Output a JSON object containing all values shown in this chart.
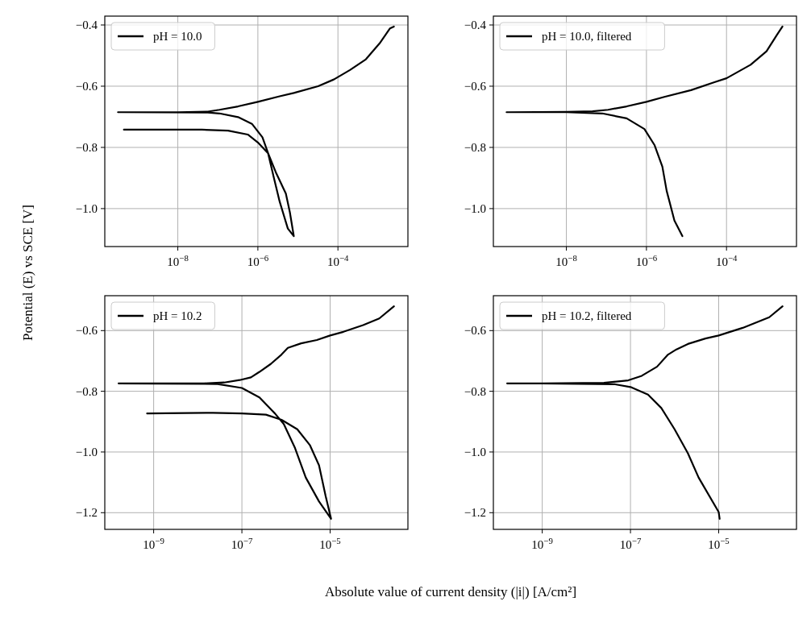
{
  "chart_data": [
    {
      "type": "line",
      "ylabel": "Potential (E) vs SCE [V]",
      "legend": "top left",
      "grid": true,
      "log": "x",
      "xlim": [
        1.5e-10,
        0.0056
      ],
      "ylim": [
        -1.124,
        -0.371
      ],
      "xticks": [
        {
          "value": 1e-08,
          "label": "10$^{−8}$"
        },
        {
          "value": 1e-06,
          "label": "10$^{−6}$"
        },
        {
          "value": 0.0001,
          "label": "10$^{−4}$"
        }
      ],
      "yticks": [
        {
          "value": -0.4,
          "label": "−0.4"
        },
        {
          "value": -0.6,
          "label": "−0.6"
        },
        {
          "value": -0.8,
          "label": "−0.8"
        },
        {
          "value": -1.0,
          "label": "−1.0"
        }
      ],
      "series": [
        {
          "name": "pH = 10.0",
          "color": "#000000",
          "x": [
            0.0025,
            0.002,
            0.0011,
            0.0005,
            0.0002,
            7.9e-05,
            3.2e-05,
            7.9e-06,
            3.5e-06,
            1e-06,
            3.2e-07,
            1.1e-07,
            5.6e-08,
            1e-08,
            3.2e-10,
            5.6e-08,
            1.1e-07,
            3.2e-07,
            7.1e-07,
            1.3e-06,
            1.8e-06,
            2.5e-06,
            3.5e-06,
            5.6e-06,
            7.9e-06,
            6.3e-06,
            5e-06,
            2.8e-06,
            1.8e-06,
            1e-06,
            5.6e-07,
            1.8e-07,
            4e-08,
            4.5e-10
          ],
          "values": [
            -0.405,
            -0.411,
            -0.46,
            -0.512,
            -0.547,
            -0.578,
            -0.6,
            -0.622,
            -0.633,
            -0.651,
            -0.666,
            -0.677,
            -0.683,
            -0.685,
            -0.685,
            -0.686,
            -0.689,
            -0.701,
            -0.723,
            -0.767,
            -0.819,
            -0.898,
            -0.977,
            -1.065,
            -1.09,
            -1.012,
            -0.951,
            -0.881,
            -0.819,
            -0.784,
            -0.758,
            -0.745,
            -0.742,
            -0.742
          ]
        }
      ]
    },
    {
      "type": "line",
      "legend": "top left",
      "grid": true,
      "log": "x",
      "xlim": [
        1.5e-10,
        0.0056
      ],
      "ylim": [
        -1.124,
        -0.371
      ],
      "xticks": [
        {
          "value": 1e-08,
          "label": "10$^{−8}$"
        },
        {
          "value": 1e-06,
          "label": "10$^{−6}$"
        },
        {
          "value": 0.0001,
          "label": "10$^{−4}$"
        }
      ],
      "yticks": [
        {
          "value": -0.4,
          "label": "−0.4"
        },
        {
          "value": -0.6,
          "label": "−0.6"
        },
        {
          "value": -0.8,
          "label": "−0.8"
        },
        {
          "value": -1.0,
          "label": "−1.0"
        }
      ],
      "series": [
        {
          "name": "pH = 10.0, filtered",
          "color": "#000000",
          "x": [
            0.0025,
            0.0018,
            0.001,
            0.0004,
            0.0001,
            5e-05,
            1.3e-05,
            2.8e-06,
            1e-06,
            3.2e-07,
            1.1e-07,
            4.5e-08,
            1e-08,
            3.2e-10,
            1e-08,
            7.9e-08,
            3.2e-07,
            8.9e-07,
            1.6e-06,
            2.5e-06,
            3.2e-06,
            5e-06,
            7.9e-06
          ],
          "values": [
            -0.405,
            -0.433,
            -0.486,
            -0.53,
            -0.574,
            -0.587,
            -0.613,
            -0.635,
            -0.651,
            -0.666,
            -0.677,
            -0.682,
            -0.684,
            -0.685,
            -0.685,
            -0.689,
            -0.705,
            -0.74,
            -0.793,
            -0.863,
            -0.942,
            -1.039,
            -1.09
          ]
        }
      ]
    },
    {
      "type": "line",
      "xlabel": "Absolute value of current density (|i|) [A/cm²]",
      "legend": "top left",
      "grid": true,
      "log": "x",
      "xlim": [
        7.8e-11,
        0.00058
      ],
      "ylim": [
        -1.255,
        -0.485
      ],
      "xticks": [
        {
          "value": 1e-09,
          "label": "10$^{−9}$"
        },
        {
          "value": 1e-07,
          "label": "10$^{−7}$"
        },
        {
          "value": 1e-05,
          "label": "10$^{−5}$"
        }
      ],
      "yticks": [
        {
          "value": -0.6,
          "label": "−0.6"
        },
        {
          "value": -0.8,
          "label": "−0.8"
        },
        {
          "value": -1.0,
          "label": "−1.0"
        },
        {
          "value": -1.2,
          "label": "−1.2"
        }
      ],
      "series": [
        {
          "name": "pH = 10.2",
          "color": "#000000",
          "x": [
            0.00028,
            0.00013,
            5.6e-05,
            2e-05,
            1e-05,
            5e-06,
            2.2e-06,
            1.1e-06,
            7.9e-07,
            4.5e-07,
            2.5e-07,
            1.6e-07,
            8.9e-08,
            4e-08,
            1.4e-08,
            1.6e-10,
            2.8e-08,
            1e-07,
            2.5e-07,
            5.6e-07,
            8.9e-07,
            1.6e-06,
            2.8e-06,
            5.6e-06,
            1.05e-05,
            7.9e-06,
            5.6e-06,
            3.5e-06,
            1.8e-06,
            7.9e-07,
            3.5e-07,
            1e-07,
            2.2e-08,
            7.1e-10
          ],
          "values": [
            -0.52,
            -0.56,
            -0.582,
            -0.604,
            -0.616,
            -0.631,
            -0.642,
            -0.657,
            -0.679,
            -0.71,
            -0.736,
            -0.754,
            -0.763,
            -0.771,
            -0.774,
            -0.774,
            -0.776,
            -0.789,
            -0.82,
            -0.873,
            -0.908,
            -0.987,
            -1.084,
            -1.163,
            -1.22,
            -1.145,
            -1.044,
            -0.978,
            -0.925,
            -0.894,
            -0.877,
            -0.873,
            -0.871,
            -0.873
          ]
        }
      ]
    },
    {
      "type": "line",
      "legend": "top left",
      "grid": true,
      "log": "x",
      "xlim": [
        7.8e-11,
        0.00058
      ],
      "ylim": [
        -1.255,
        -0.485
      ],
      "xticks": [
        {
          "value": 1e-09,
          "label": "10$^{−9}$"
        },
        {
          "value": 1e-07,
          "label": "10$^{−7}$"
        },
        {
          "value": 1e-05,
          "label": "10$^{−5}$"
        }
      ],
      "yticks": [
        {
          "value": -0.6,
          "label": "−0.6"
        },
        {
          "value": -0.8,
          "label": "−0.8"
        },
        {
          "value": -1.0,
          "label": "−1.0"
        },
        {
          "value": -1.2,
          "label": "−1.2"
        }
      ],
      "series": [
        {
          "name": "pH = 10.2, filtered",
          "color": "#000000",
          "x": [
            0.00028,
            0.00014,
            3.5e-05,
            1e-05,
            5e-06,
            2e-06,
            1.1e-06,
            7.1e-07,
            4e-07,
            1.8e-07,
            8.9e-08,
            2.5e-08,
            1e-09,
            1.6e-10,
            1e-09,
            4.5e-08,
            1e-07,
            2.5e-07,
            5e-07,
            1e-06,
            2e-06,
            3.5e-06,
            1e-05,
            1.05e-05
          ],
          "values": [
            -0.52,
            -0.556,
            -0.591,
            -0.616,
            -0.626,
            -0.644,
            -0.662,
            -0.679,
            -0.719,
            -0.749,
            -0.764,
            -0.772,
            -0.774,
            -0.774,
            -0.774,
            -0.777,
            -0.786,
            -0.811,
            -0.855,
            -0.925,
            -1.004,
            -1.084,
            -1.198,
            -1.22
          ]
        }
      ]
    }
  ]
}
